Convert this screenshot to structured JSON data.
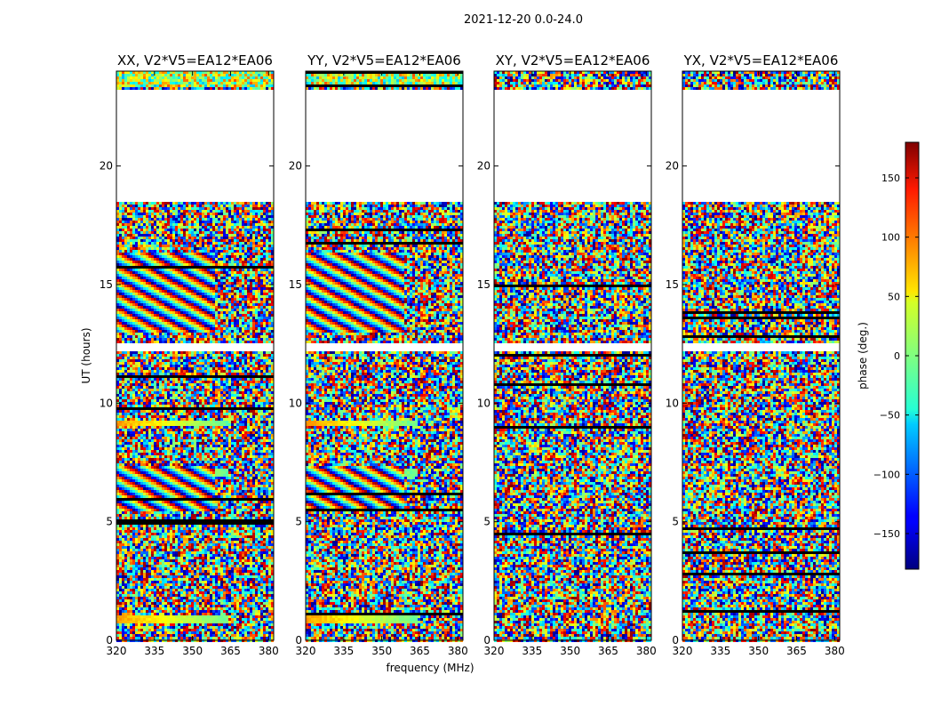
{
  "figure": {
    "suptitle": "2021-12-20 0.0-24.0",
    "xlabel": "frequency (MHz)",
    "ylabel": "UT (hours)"
  },
  "colorbar": {
    "label": "phase (deg.)",
    "ticks": [
      150,
      100,
      50,
      0,
      -50,
      -100,
      -150
    ],
    "tick_labels": [
      "150",
      "100",
      "50",
      "0",
      "−50",
      "−100",
      "−150"
    ],
    "range": [
      -180,
      180
    ],
    "colormap": "jet"
  },
  "chart_data": {
    "type": "heatmap",
    "title": "2021-12-20 0.0-24.0",
    "xlabel": "frequency (MHz)",
    "ylabel": "UT (hours)",
    "xlim": [
      320,
      382
    ],
    "ylim": [
      0,
      24
    ],
    "xticks": [
      320,
      335,
      350,
      365,
      380
    ],
    "xtick_labels": [
      "320",
      "335",
      "350",
      "365",
      "380"
    ],
    "yticks": [
      0,
      5,
      10,
      15,
      20
    ],
    "ytick_labels": [
      "0",
      "5",
      "10",
      "15",
      "20"
    ],
    "value_label": "phase (deg.)",
    "value_range": [
      -180,
      180
    ],
    "panels": [
      {
        "title": "XX, V2*V5=EA12*EA06",
        "polarization": "XX"
      },
      {
        "title": "YY, V2*V5=EA12*EA06",
        "polarization": "YY"
      },
      {
        "title": "XY, V2*V5=EA12*EA06",
        "polarization": "XY"
      },
      {
        "title": "YX, V2*V5=EA12*EA06",
        "polarization": "YX"
      }
    ],
    "blank_ut_ranges": [
      [
        18.6,
        23.3
      ],
      [
        12.3,
        12.6
      ]
    ]
  }
}
